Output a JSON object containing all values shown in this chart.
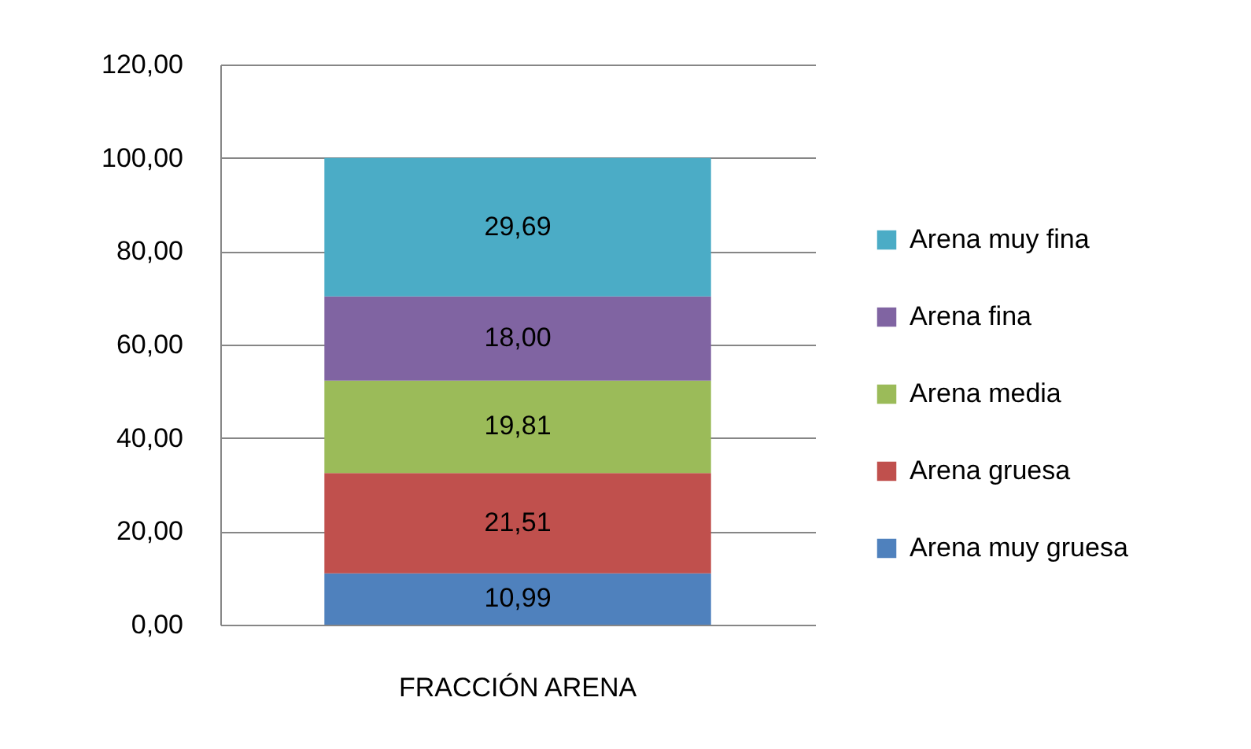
{
  "chart_data": {
    "type": "bar",
    "stacked": true,
    "categories": [
      "FRACCIÓN ARENA"
    ],
    "series": [
      {
        "name": "Arena muy gruesa",
        "color": "#4f81bd",
        "values": [
          10.99
        ],
        "value_labels": [
          "10,99"
        ]
      },
      {
        "name": "Arena gruesa",
        "color": "#c0504d",
        "values": [
          21.51
        ],
        "value_labels": [
          "21,51"
        ]
      },
      {
        "name": "Arena media",
        "color": "#9bbb59",
        "values": [
          19.81
        ],
        "value_labels": [
          "19,81"
        ]
      },
      {
        "name": "Arena fina",
        "color": "#8064a2",
        "values": [
          18.0
        ],
        "value_labels": [
          "18,00"
        ]
      },
      {
        "name": "Arena muy fina",
        "color": "#4bacc6",
        "values": [
          29.69
        ],
        "value_labels": [
          "29,69"
        ]
      }
    ],
    "ylim": [
      0,
      120
    ],
    "yticks": [
      {
        "value": 0,
        "label": "0,00"
      },
      {
        "value": 20,
        "label": "20,00"
      },
      {
        "value": 40,
        "label": "40,00"
      },
      {
        "value": 60,
        "label": "60,00"
      },
      {
        "value": 80,
        "label": "80,00"
      },
      {
        "value": 100,
        "label": "100,00"
      },
      {
        "value": 120,
        "label": "120,00"
      }
    ],
    "grid": "y",
    "legend": "right"
  }
}
